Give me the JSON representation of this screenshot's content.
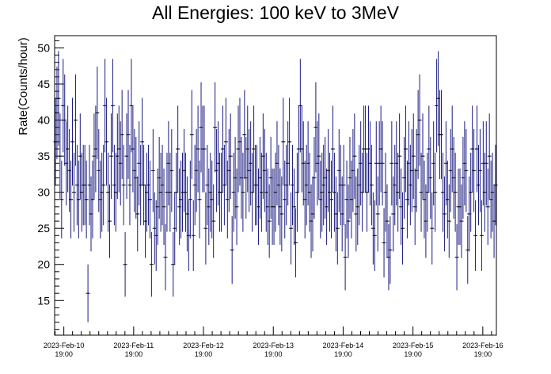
{
  "chart_data": {
    "type": "scatter",
    "title": "All Energies:  100 keV to 3MeV",
    "xlabel": "",
    "ylabel": "Rate(Counts/hour)",
    "ylim": [
      10.2,
      51.7
    ],
    "yticks": [
      15,
      20,
      25,
      30,
      35,
      40,
      45,
      50
    ],
    "xlim": [
      "2023-Feb-10 15:50",
      "2023-Feb-16 23:40"
    ],
    "xticks": [
      {
        "date": "2023-Feb-10",
        "time": "19:00"
      },
      {
        "date": "2023-Feb-11",
        "time": "19:00"
      },
      {
        "date": "2023-Feb-12",
        "time": "19:00"
      },
      {
        "date": "2023-Feb-13",
        "time": "19:00"
      },
      {
        "date": "2023-Feb-14",
        "time": "19:00"
      },
      {
        "date": "2023-Feb-15",
        "time": "19:00"
      },
      {
        "date": "2023-Feb-16",
        "time": "19:00"
      }
    ],
    "grid": false,
    "legend": "none",
    "marker": "horizontal bar with vertical error bars",
    "error_bars": "sqrt(N)",
    "colors": {
      "series": "#1a1a80",
      "axes": "#000000"
    },
    "series": [
      {
        "values": [
          37,
          41,
          43,
          35,
          29,
          42,
          40,
          34,
          36,
          33,
          29,
          37,
          30,
          40,
          31,
          29,
          35,
          30,
          31,
          31,
          29,
          16,
          31,
          27,
          29,
          35,
          36,
          41,
          33,
          29,
          30,
          31,
          42,
          37,
          30,
          26,
          35,
          42,
          31,
          30,
          35,
          36,
          34,
          38,
          31,
          20,
          35,
          38,
          31,
          42,
          36,
          33,
          32,
          27,
          34,
          31,
          37,
          31,
          26,
          30,
          31,
          29,
          20,
          33,
          25,
          24,
          28,
          32,
          30,
          31,
          28,
          21,
          30,
          34,
          30,
          33,
          20,
          25,
          30,
          36,
          28,
          29,
          30,
          33,
          30,
          27,
          24,
          29,
          38,
          24,
          31,
          33,
          36,
          29,
          39,
          36,
          36,
          25,
          31,
          28,
          30,
          29,
          26,
          39,
          33,
          34,
          30,
          30,
          36,
          31,
          37,
          29,
          33,
          35,
          22,
          30,
          32,
          28,
          36,
          37,
          32,
          30,
          38,
          32,
          36,
          33,
          34,
          30,
          36,
          31,
          31,
          28,
          32,
          30,
          35,
          33,
          30,
          28,
          26,
          32,
          28,
          28,
          30,
          34,
          31,
          28,
          27,
          37,
          29,
          31,
          34,
          37,
          25,
          31,
          28,
          23,
          30,
          36,
          42,
          36,
          34,
          29,
          31,
          34,
          30,
          26,
          27,
          32,
          39,
          34,
          35,
          29,
          30,
          31,
          32,
          28,
          33,
          30,
          29,
          36,
          30,
          27,
          25,
          33,
          31,
          27,
          31,
          21,
          29,
          26,
          32,
          29,
          33,
          35,
          27,
          28,
          31,
          34,
          30,
          36,
          36,
          30,
          36,
          34,
          31,
          25,
          24,
          34,
          27,
          34,
          36,
          34,
          23,
          30,
          26,
          21,
          22,
          34,
          27,
          31,
          34,
          30,
          35,
          28,
          25,
          32,
          36,
          29,
          34,
          31,
          33,
          35,
          28,
          33,
          38,
          40,
          30,
          35,
          29,
          26,
          30,
          36,
          32,
          25,
          34,
          30,
          42,
          43,
          38,
          38,
          30,
          27,
          34,
          29,
          26,
          33,
          36,
          32,
          30,
          21,
          28,
          28,
          26,
          32,
          34,
          33,
          22,
          27,
          30,
          36,
          33,
          24,
          36,
          31,
          33,
          24,
          34,
          30,
          34,
          28,
          35,
          29,
          30,
          26,
          31
        ]
      }
    ]
  }
}
